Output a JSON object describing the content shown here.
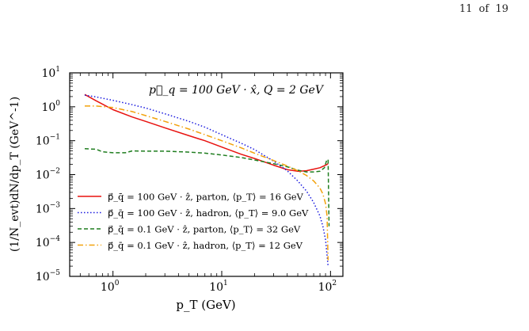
{
  "page": {
    "current": "11",
    "of_label": "of",
    "total": "19"
  },
  "colors": {
    "parton_q100": "#e8120f",
    "hadron_q100": "#1a1adf",
    "parton_q01": "#1f7d1f",
    "hadron_q01": "#f2a20c"
  },
  "chart_data": {
    "type": "line",
    "title": "",
    "annotation": "p⃗_q = 100 GeV · x̂,  Q = 2 GeV",
    "xlabel": "p_T  (GeV)",
    "ylabel": "(1/N_evt)dN/dp_T (GeV^-1)",
    "x_scale": "log",
    "y_scale": "log",
    "xlim": [
      0.4,
      130
    ],
    "ylim": [
      1e-05,
      10
    ],
    "x_ticks": [
      {
        "value": 1,
        "base": "10",
        "exp": "0"
      },
      {
        "value": 10,
        "base": "10",
        "exp": "1"
      },
      {
        "value": 100,
        "base": "10",
        "exp": "2"
      }
    ],
    "y_ticks": [
      {
        "value": 10,
        "base": "10",
        "exp": "1"
      },
      {
        "value": 1,
        "base": "10",
        "exp": "0"
      },
      {
        "value": 0.1,
        "base": "10",
        "exp": "−1"
      },
      {
        "value": 0.01,
        "base": "10",
        "exp": "−2"
      },
      {
        "value": 0.001,
        "base": "10",
        "exp": "−3"
      },
      {
        "value": 0.0001,
        "base": "10",
        "exp": "−4"
      },
      {
        "value": 1e-05,
        "base": "10",
        "exp": "−5"
      }
    ],
    "grid": false,
    "legend_position": "bottom-left",
    "series": [
      {
        "name": "p⃗_q̄ = 100 GeV · ẑ, parton, ⟨p_T⟩ = 16 GeV",
        "color": "#e8120f",
        "dash": "solid",
        "x": [
          0.55,
          0.7,
          1.0,
          1.5,
          2.0,
          3.0,
          5.0,
          7.0,
          10,
          15,
          20,
          30,
          40,
          50,
          60,
          70,
          80,
          90,
          95
        ],
        "y": [
          2.3,
          1.5,
          0.82,
          0.5,
          0.37,
          0.24,
          0.14,
          0.1,
          0.065,
          0.04,
          0.03,
          0.019,
          0.014,
          0.0125,
          0.013,
          0.0145,
          0.016,
          0.019,
          0.021
        ]
      },
      {
        "name": "p⃗_q̄ = 100 GeV · ẑ, hadron, ⟨p_T⟩ = 9.0 GeV",
        "color": "#1a1adf",
        "dash": "dotted",
        "x": [
          0.55,
          0.7,
          1.0,
          1.5,
          2.0,
          3.0,
          5.0,
          7.0,
          10,
          15,
          20,
          30,
          40,
          50,
          60,
          70,
          80,
          85,
          90,
          95
        ],
        "y": [
          2.2,
          1.95,
          1.55,
          1.15,
          0.92,
          0.62,
          0.37,
          0.25,
          0.15,
          0.085,
          0.055,
          0.025,
          0.013,
          0.0065,
          0.0033,
          0.0015,
          0.0006,
          0.0003,
          0.00012,
          2e-05
        ]
      },
      {
        "name": "p⃗_q̄ = 0.1 GeV · ẑ, parton, ⟨p_T⟩ = 32 GeV",
        "color": "#1f7d1f",
        "dash": "dashed",
        "x": [
          0.55,
          0.7,
          0.8,
          1.0,
          1.3,
          1.5,
          2.0,
          3.0,
          5.0,
          7.0,
          10,
          15,
          20,
          30,
          40,
          50,
          60,
          70,
          80,
          88,
          92,
          95,
          97
        ],
        "y": [
          0.058,
          0.056,
          0.047,
          0.044,
          0.044,
          0.05,
          0.049,
          0.049,
          0.046,
          0.043,
          0.038,
          0.032,
          0.027,
          0.021,
          0.017,
          0.0135,
          0.012,
          0.012,
          0.0125,
          0.016,
          0.026,
          0.028,
          0.0003
        ]
      },
      {
        "name": "p⃗_q̄ = 0.1 GeV · ẑ, hadron, ⟨p_T⟩ = 12 GeV",
        "color": "#f2a20c",
        "dash": "dashdot",
        "x": [
          0.55,
          0.7,
          1.0,
          1.5,
          2.0,
          3.0,
          5.0,
          7.0,
          10,
          15,
          20,
          30,
          40,
          50,
          60,
          70,
          80,
          85,
          90,
          93,
          95
        ],
        "y": [
          1.05,
          1.05,
          0.95,
          0.72,
          0.55,
          0.37,
          0.22,
          0.15,
          0.1,
          0.062,
          0.043,
          0.026,
          0.018,
          0.013,
          0.0095,
          0.0065,
          0.004,
          0.0027,
          0.0014,
          0.0006,
          3e-05
        ]
      }
    ]
  }
}
